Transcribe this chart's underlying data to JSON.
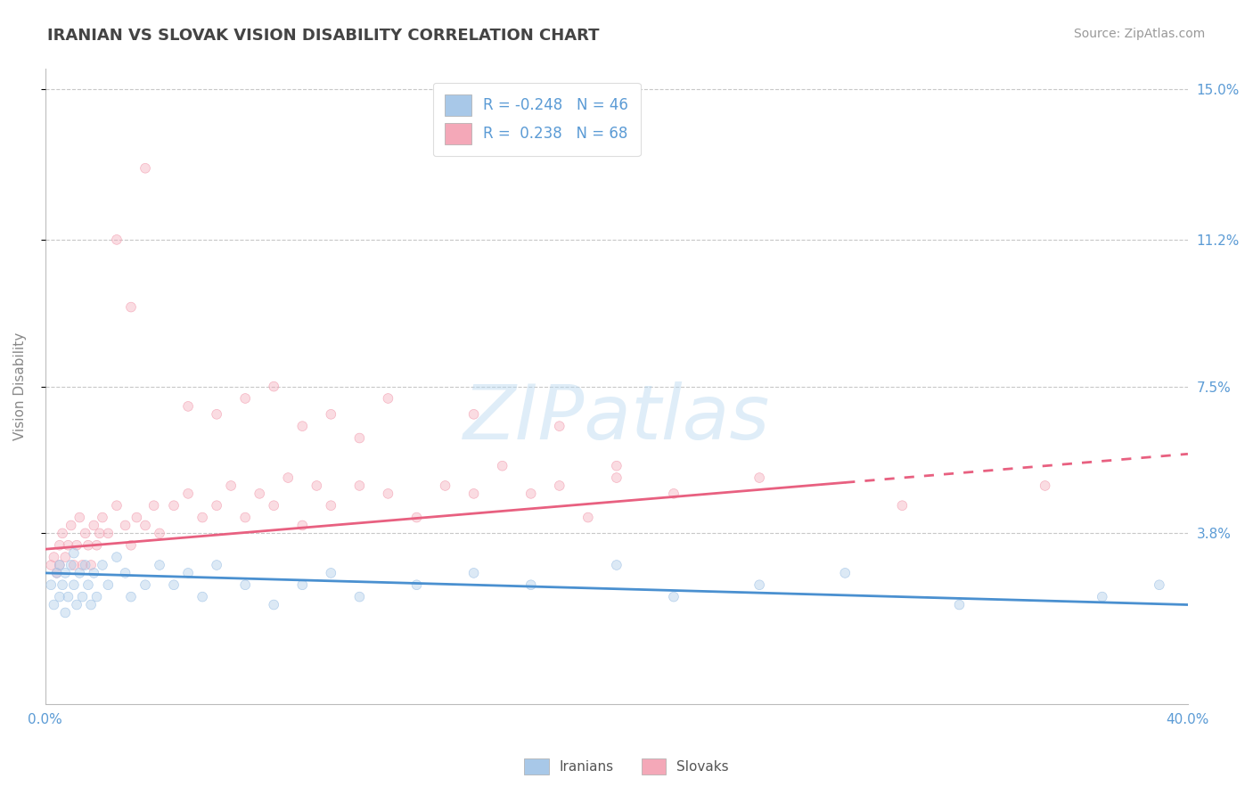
{
  "title": "IRANIAN VS SLOVAK VISION DISABILITY CORRELATION CHART",
  "source": "Source: ZipAtlas.com",
  "ylabel": "Vision Disability",
  "xlim": [
    0.0,
    0.4
  ],
  "ylim": [
    -0.005,
    0.155
  ],
  "yticks": [
    0.038,
    0.075,
    0.112,
    0.15
  ],
  "ytick_labels": [
    "3.8%",
    "7.5%",
    "11.2%",
    "15.0%"
  ],
  "xticks": [
    0.0,
    0.4
  ],
  "xtick_labels": [
    "0.0%",
    "40.0%"
  ],
  "iranian_color": "#a8c8e8",
  "slovak_color": "#f4a8b8",
  "iranian_line_color": "#4a90d0",
  "slovak_line_color": "#e86080",
  "watermark": "ZIPatlas",
  "background_color": "#ffffff",
  "grid_color": "#c8c8c8",
  "tick_label_color": "#5b9bd5",
  "axis_label_color": "#888888",
  "title_color": "#444444",
  "source_color": "#999999",
  "iranian_R": -0.248,
  "iranian_N": 46,
  "slovak_R": 0.238,
  "slovak_N": 68,
  "iran_line_x0": 0.0,
  "iran_line_y0": 0.028,
  "iran_line_x1": 0.4,
  "iran_line_y1": 0.02,
  "slov_line_x0": 0.0,
  "slov_line_y0": 0.034,
  "slov_line_x1": 0.4,
  "slov_line_y1": 0.058,
  "iranian_x": [
    0.002,
    0.003,
    0.004,
    0.005,
    0.005,
    0.006,
    0.007,
    0.007,
    0.008,
    0.009,
    0.01,
    0.01,
    0.011,
    0.012,
    0.013,
    0.014,
    0.015,
    0.016,
    0.017,
    0.018,
    0.02,
    0.022,
    0.025,
    0.028,
    0.03,
    0.035,
    0.04,
    0.045,
    0.05,
    0.055,
    0.06,
    0.07,
    0.08,
    0.09,
    0.1,
    0.11,
    0.13,
    0.15,
    0.17,
    0.2,
    0.22,
    0.25,
    0.28,
    0.32,
    0.37,
    0.39
  ],
  "iranian_y": [
    0.025,
    0.02,
    0.028,
    0.022,
    0.03,
    0.025,
    0.018,
    0.028,
    0.022,
    0.03,
    0.025,
    0.033,
    0.02,
    0.028,
    0.022,
    0.03,
    0.025,
    0.02,
    0.028,
    0.022,
    0.03,
    0.025,
    0.032,
    0.028,
    0.022,
    0.025,
    0.03,
    0.025,
    0.028,
    0.022,
    0.03,
    0.025,
    0.02,
    0.025,
    0.028,
    0.022,
    0.025,
    0.028,
    0.025,
    0.03,
    0.022,
    0.025,
    0.028,
    0.02,
    0.022,
    0.025
  ],
  "slovak_x": [
    0.002,
    0.003,
    0.004,
    0.005,
    0.005,
    0.006,
    0.007,
    0.008,
    0.009,
    0.01,
    0.011,
    0.012,
    0.013,
    0.014,
    0.015,
    0.016,
    0.017,
    0.018,
    0.019,
    0.02,
    0.022,
    0.025,
    0.028,
    0.03,
    0.032,
    0.035,
    0.038,
    0.04,
    0.045,
    0.05,
    0.055,
    0.06,
    0.065,
    0.07,
    0.075,
    0.08,
    0.085,
    0.09,
    0.095,
    0.1,
    0.11,
    0.12,
    0.13,
    0.14,
    0.15,
    0.16,
    0.17,
    0.18,
    0.19,
    0.2,
    0.05,
    0.06,
    0.07,
    0.08,
    0.09,
    0.1,
    0.11,
    0.12,
    0.15,
    0.18,
    0.025,
    0.03,
    0.035,
    0.2,
    0.22,
    0.25,
    0.3,
    0.35
  ],
  "slovak_y": [
    0.03,
    0.032,
    0.028,
    0.035,
    0.03,
    0.038,
    0.032,
    0.035,
    0.04,
    0.03,
    0.035,
    0.042,
    0.03,
    0.038,
    0.035,
    0.03,
    0.04,
    0.035,
    0.038,
    0.042,
    0.038,
    0.045,
    0.04,
    0.035,
    0.042,
    0.04,
    0.045,
    0.038,
    0.045,
    0.048,
    0.042,
    0.045,
    0.05,
    0.042,
    0.048,
    0.045,
    0.052,
    0.04,
    0.05,
    0.045,
    0.05,
    0.048,
    0.042,
    0.05,
    0.048,
    0.055,
    0.048,
    0.05,
    0.042,
    0.052,
    0.07,
    0.068,
    0.072,
    0.075,
    0.065,
    0.068,
    0.062,
    0.072,
    0.068,
    0.065,
    0.112,
    0.095,
    0.13,
    0.055,
    0.048,
    0.052,
    0.045,
    0.05
  ]
}
